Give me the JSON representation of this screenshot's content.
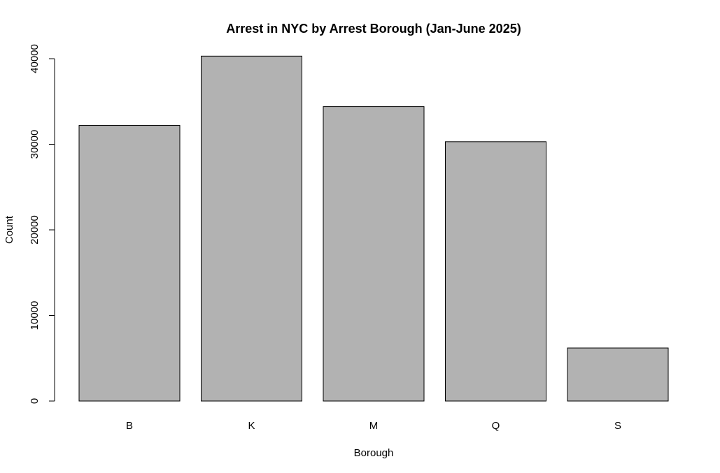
{
  "chart_data": {
    "type": "bar",
    "title": "Arrest in NYC by Arrest Borough (Jan-June 2025)",
    "xlabel": "Borough",
    "ylabel": "Count",
    "categories": [
      "B",
      "K",
      "M",
      "Q",
      "S"
    ],
    "values": [
      32200,
      40300,
      34400,
      30300,
      6200
    ],
    "ylim": [
      0,
      40000
    ],
    "yticks": [
      0,
      10000,
      20000,
      30000,
      40000
    ],
    "ytick_labels": [
      "0",
      "10000",
      "20000",
      "30000",
      "40000"
    ],
    "grid": false,
    "legend": "none",
    "bar_color": "#b2b2b2",
    "bar_edge_color": "#000000"
  }
}
